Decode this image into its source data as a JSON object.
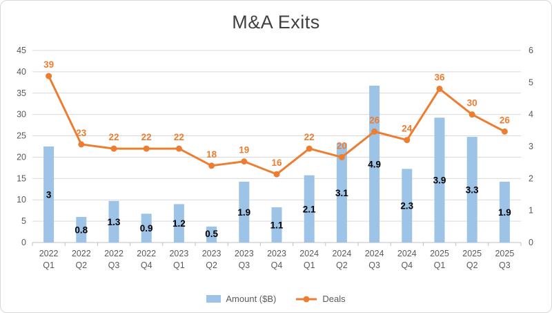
{
  "title": "M&A Exits",
  "legend": {
    "amount_label": "Amount ($B)",
    "deals_label": "Deals"
  },
  "colors": {
    "bar": "#9DC3E6",
    "line": "#ED7D31",
    "bar_label": "#000000",
    "line_label": "#ED7D31",
    "axis_text": "#595959",
    "gridline": "#D9D9D9",
    "axis_line": "#BFBFBF",
    "title": "#404040",
    "border": "#D9D9D9"
  },
  "chart_data": {
    "type": "combo",
    "title": "M&A Exits",
    "categories": [
      "2022 Q1",
      "2022 Q2",
      "2022 Q3",
      "2022 Q4",
      "2023 Q1",
      "2023 Q2",
      "2023 Q3",
      "2023 Q4",
      "2024 Q1",
      "2024 Q2",
      "2024 Q3",
      "2024 Q4",
      "2025 Q1",
      "2025 Q2",
      "2025 Q3"
    ],
    "series": [
      {
        "name": "Amount ($B)",
        "type": "bar",
        "axis": "right",
        "values": [
          3,
          0.8,
          1.3,
          0.9,
          1.2,
          0.5,
          1.9,
          1.1,
          2.1,
          3.1,
          4.9,
          2.3,
          3.9,
          3.3,
          1.9
        ]
      },
      {
        "name": "Deals",
        "type": "line",
        "axis": "left",
        "values": [
          39,
          23,
          22,
          22,
          22,
          18,
          19,
          16,
          22,
          20,
          26,
          24,
          36,
          30,
          26
        ]
      }
    ],
    "left_axis": {
      "min": 0,
      "max": 45,
      "step": 5
    },
    "right_axis": {
      "min": 0,
      "max": 6,
      "step": 1
    },
    "grid": true,
    "legend_position": "bottom"
  }
}
